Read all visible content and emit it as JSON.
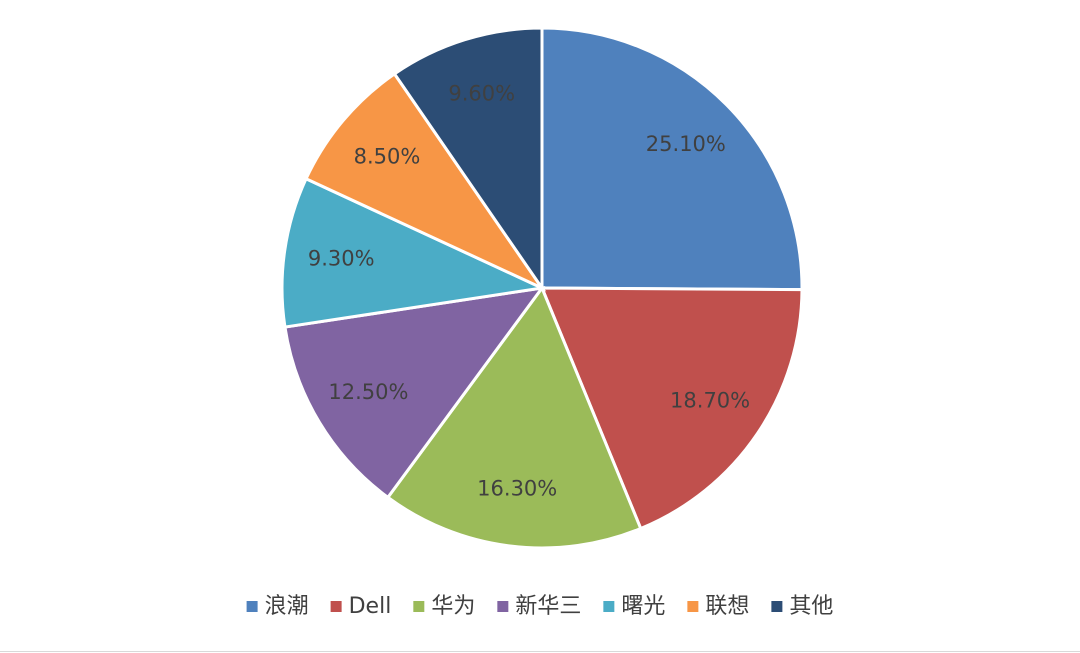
{
  "chart_data": {
    "type": "pie",
    "categories": [
      "浪潮",
      "Dell",
      "华为",
      "新华三",
      "曙光",
      "联想",
      "其他"
    ],
    "values": [
      25.1,
      18.7,
      16.3,
      12.5,
      9.3,
      8.5,
      9.6
    ],
    "value_labels": [
      "25.10%",
      "18.70%",
      "16.30%",
      "12.50%",
      "9.30%",
      "8.50%",
      "9.60%"
    ],
    "colors": [
      "#4f81bd",
      "#c0504d",
      "#9bbb59",
      "#8064a2",
      "#4bacc6",
      "#f79646",
      "#2c4d75"
    ],
    "legend": "bottom"
  }
}
